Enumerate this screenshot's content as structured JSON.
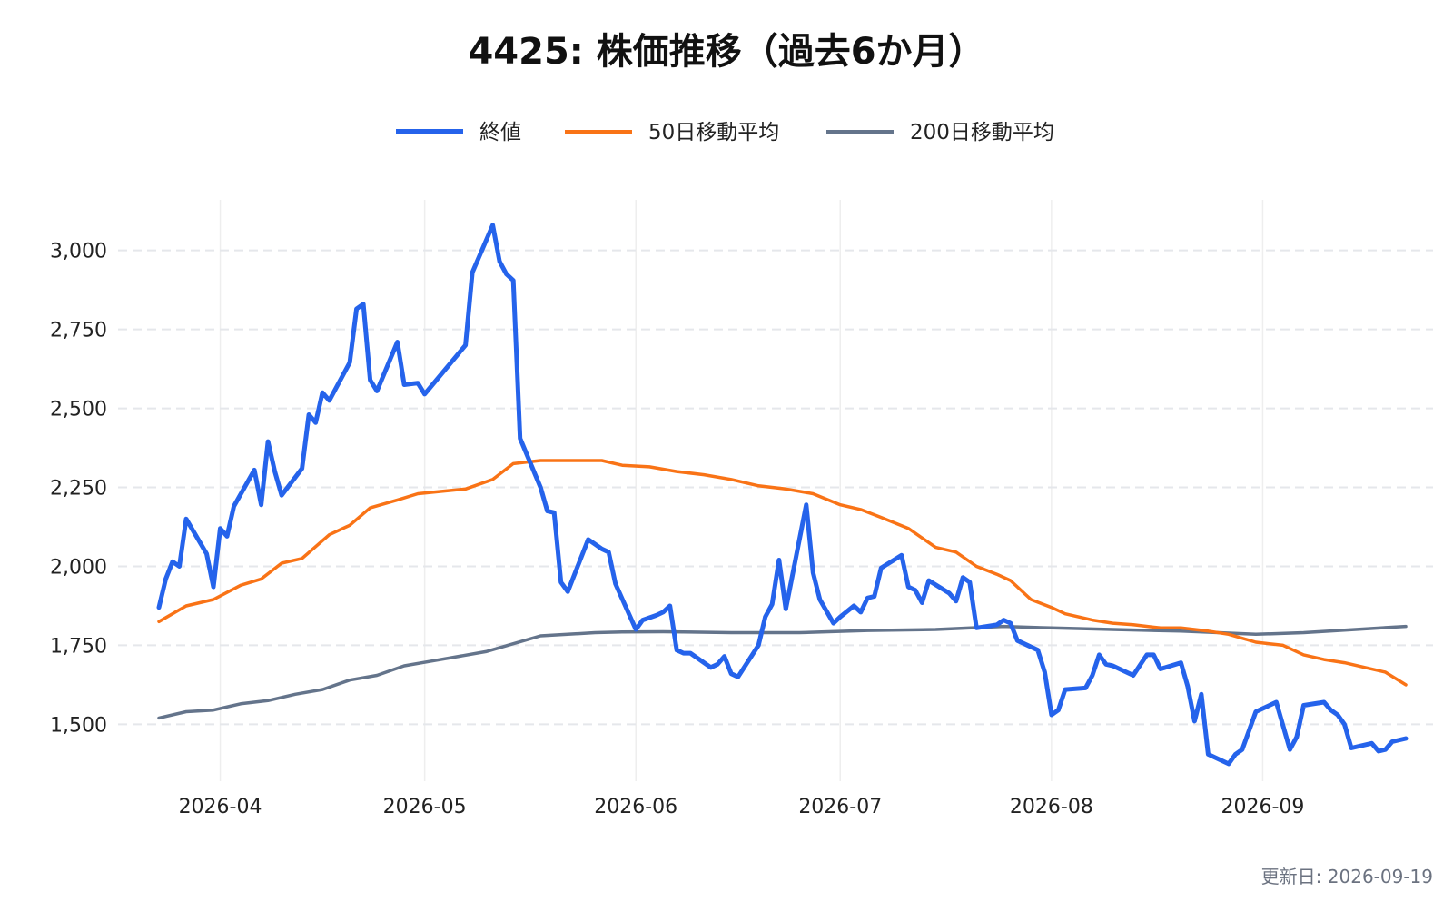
{
  "chart_data": {
    "type": "line",
    "title": "4425: 株価推移（過去6か月）",
    "xlabel": "",
    "ylabel": "",
    "x_ticks": [
      "2026-04",
      "2026-05",
      "2026-06",
      "2026-07",
      "2026-08",
      "2026-09"
    ],
    "y_ticks": [
      "1,500",
      "1,750",
      "2,000",
      "2,250",
      "2,500",
      "2,750",
      "3,000"
    ],
    "y_tick_values": [
      1500,
      1750,
      2000,
      2250,
      2500,
      2750,
      3000
    ],
    "ylim": [
      1320,
      3160
    ],
    "xlim": [
      "2026-03-17",
      "2026-09-26"
    ],
    "grid": true,
    "legend_position": "top-center",
    "series": [
      {
        "name": "終値",
        "color": "#2563eb",
        "points": [
          [
            "2026-03-23",
            1870
          ],
          [
            "2026-03-24",
            1960
          ],
          [
            "2026-03-25",
            2015
          ],
          [
            "2026-03-26",
            2000
          ],
          [
            "2026-03-27",
            2150
          ],
          [
            "2026-03-30",
            2040
          ],
          [
            "2026-03-31",
            1935
          ],
          [
            "2026-04-01",
            2120
          ],
          [
            "2026-04-02",
            2095
          ],
          [
            "2026-04-03",
            2190
          ],
          [
            "2026-04-06",
            2305
          ],
          [
            "2026-04-07",
            2195
          ],
          [
            "2026-04-08",
            2395
          ],
          [
            "2026-04-09",
            2300
          ],
          [
            "2026-04-10",
            2225
          ],
          [
            "2026-04-13",
            2310
          ],
          [
            "2026-04-14",
            2480
          ],
          [
            "2026-04-15",
            2455
          ],
          [
            "2026-04-16",
            2550
          ],
          [
            "2026-04-17",
            2525
          ],
          [
            "2026-04-20",
            2645
          ],
          [
            "2026-04-21",
            2815
          ],
          [
            "2026-04-22",
            2830
          ],
          [
            "2026-04-23",
            2590
          ],
          [
            "2026-04-24",
            2555
          ],
          [
            "2026-04-27",
            2710
          ],
          [
            "2026-04-28",
            2575
          ],
          [
            "2026-04-30",
            2580
          ],
          [
            "2026-05-01",
            2545
          ],
          [
            "2026-05-07",
            2700
          ],
          [
            "2026-05-08",
            2930
          ],
          [
            "2026-05-11",
            3080
          ],
          [
            "2026-05-12",
            2965
          ],
          [
            "2026-05-13",
            2925
          ],
          [
            "2026-05-14",
            2905
          ],
          [
            "2026-05-15",
            2405
          ],
          [
            "2026-05-18",
            2250
          ],
          [
            "2026-05-19",
            2175
          ],
          [
            "2026-05-20",
            2170
          ],
          [
            "2026-05-21",
            1950
          ],
          [
            "2026-05-22",
            1920
          ],
          [
            "2026-05-25",
            2085
          ],
          [
            "2026-05-26",
            2070
          ],
          [
            "2026-05-27",
            2055
          ],
          [
            "2026-05-28",
            2045
          ],
          [
            "2026-05-29",
            1945
          ],
          [
            "2026-06-01",
            1800
          ],
          [
            "2026-06-02",
            1830
          ],
          [
            "2026-06-04",
            1845
          ],
          [
            "2026-06-05",
            1855
          ],
          [
            "2026-06-06",
            1875
          ],
          [
            "2026-06-07",
            1735
          ],
          [
            "2026-06-08",
            1725
          ],
          [
            "2026-06-09",
            1725
          ],
          [
            "2026-06-12",
            1680
          ],
          [
            "2026-06-13",
            1690
          ],
          [
            "2026-06-14",
            1715
          ],
          [
            "2026-06-15",
            1660
          ],
          [
            "2026-06-16",
            1650
          ],
          [
            "2026-06-19",
            1750
          ],
          [
            "2026-06-20",
            1840
          ],
          [
            "2026-06-21",
            1880
          ],
          [
            "2026-06-22",
            2020
          ],
          [
            "2026-06-23",
            1865
          ],
          [
            "2026-06-26",
            2195
          ],
          [
            "2026-06-27",
            1980
          ],
          [
            "2026-06-28",
            1895
          ],
          [
            "2026-06-30",
            1820
          ],
          [
            "2026-07-01",
            1840
          ],
          [
            "2026-07-03",
            1875
          ],
          [
            "2026-07-04",
            1855
          ],
          [
            "2026-07-05",
            1900
          ],
          [
            "2026-07-06",
            1905
          ],
          [
            "2026-07-07",
            1995
          ],
          [
            "2026-07-10",
            2035
          ],
          [
            "2026-07-11",
            1935
          ],
          [
            "2026-07-12",
            1925
          ],
          [
            "2026-07-13",
            1885
          ],
          [
            "2026-07-14",
            1955
          ],
          [
            "2026-07-17",
            1915
          ],
          [
            "2026-07-18",
            1890
          ],
          [
            "2026-07-19",
            1965
          ],
          [
            "2026-07-20",
            1950
          ],
          [
            "2026-07-21",
            1805
          ],
          [
            "2026-07-24",
            1815
          ],
          [
            "2026-07-25",
            1830
          ],
          [
            "2026-07-26",
            1820
          ],
          [
            "2026-07-27",
            1765
          ],
          [
            "2026-07-30",
            1735
          ],
          [
            "2026-07-31",
            1665
          ],
          [
            "2026-08-01",
            1530
          ],
          [
            "2026-08-02",
            1545
          ],
          [
            "2026-08-03",
            1610
          ],
          [
            "2026-08-06",
            1615
          ],
          [
            "2026-08-07",
            1655
          ],
          [
            "2026-08-08",
            1720
          ],
          [
            "2026-08-09",
            1690
          ],
          [
            "2026-08-10",
            1685
          ],
          [
            "2026-08-13",
            1655
          ],
          [
            "2026-08-15",
            1720
          ],
          [
            "2026-08-16",
            1720
          ],
          [
            "2026-08-17",
            1675
          ],
          [
            "2026-08-20",
            1695
          ],
          [
            "2026-08-21",
            1620
          ],
          [
            "2026-08-22",
            1510
          ],
          [
            "2026-08-23",
            1595
          ],
          [
            "2026-08-24",
            1405
          ],
          [
            "2026-08-27",
            1375
          ],
          [
            "2026-08-28",
            1405
          ],
          [
            "2026-08-29",
            1420
          ],
          [
            "2026-08-31",
            1540
          ],
          [
            "2026-09-03",
            1570
          ],
          [
            "2026-09-05",
            1420
          ],
          [
            "2026-09-06",
            1460
          ],
          [
            "2026-09-07",
            1560
          ],
          [
            "2026-09-10",
            1570
          ],
          [
            "2026-09-11",
            1545
          ],
          [
            "2026-09-12",
            1530
          ],
          [
            "2026-09-13",
            1500
          ],
          [
            "2026-09-14",
            1425
          ],
          [
            "2026-09-17",
            1440
          ],
          [
            "2026-09-18",
            1415
          ],
          [
            "2026-09-19",
            1420
          ],
          [
            "2026-09-20",
            1445
          ],
          [
            "2026-09-22",
            1455
          ]
        ]
      },
      {
        "name": "50日移動平均",
        "color": "#f97316",
        "points": [
          [
            "2026-03-23",
            1825
          ],
          [
            "2026-03-27",
            1875
          ],
          [
            "2026-03-31",
            1895
          ],
          [
            "2026-04-04",
            1940
          ],
          [
            "2026-04-07",
            1960
          ],
          [
            "2026-04-10",
            2010
          ],
          [
            "2026-04-13",
            2025
          ],
          [
            "2026-04-17",
            2100
          ],
          [
            "2026-04-20",
            2130
          ],
          [
            "2026-04-23",
            2185
          ],
          [
            "2026-04-27",
            2210
          ],
          [
            "2026-04-30",
            2230
          ],
          [
            "2026-05-07",
            2245
          ],
          [
            "2026-05-11",
            2275
          ],
          [
            "2026-05-14",
            2325
          ],
          [
            "2026-05-18",
            2335
          ],
          [
            "2026-05-22",
            2335
          ],
          [
            "2026-05-27",
            2335
          ],
          [
            "2026-05-30",
            2320
          ],
          [
            "2026-06-03",
            2315
          ],
          [
            "2026-06-07",
            2300
          ],
          [
            "2026-06-11",
            2290
          ],
          [
            "2026-06-15",
            2275
          ],
          [
            "2026-06-19",
            2255
          ],
          [
            "2026-06-23",
            2245
          ],
          [
            "2026-06-27",
            2230
          ],
          [
            "2026-07-01",
            2195
          ],
          [
            "2026-07-04",
            2180
          ],
          [
            "2026-07-07",
            2155
          ],
          [
            "2026-07-11",
            2120
          ],
          [
            "2026-07-15",
            2060
          ],
          [
            "2026-07-18",
            2045
          ],
          [
            "2026-07-21",
            2000
          ],
          [
            "2026-07-24",
            1975
          ],
          [
            "2026-07-26",
            1955
          ],
          [
            "2026-07-29",
            1895
          ],
          [
            "2026-08-01",
            1870
          ],
          [
            "2026-08-03",
            1850
          ],
          [
            "2026-08-07",
            1830
          ],
          [
            "2026-08-10",
            1820
          ],
          [
            "2026-08-13",
            1815
          ],
          [
            "2026-08-17",
            1805
          ],
          [
            "2026-08-20",
            1805
          ],
          [
            "2026-08-24",
            1795
          ],
          [
            "2026-08-27",
            1785
          ],
          [
            "2026-08-31",
            1760
          ],
          [
            "2026-09-04",
            1750
          ],
          [
            "2026-09-07",
            1720
          ],
          [
            "2026-09-10",
            1705
          ],
          [
            "2026-09-13",
            1695
          ],
          [
            "2026-09-16",
            1680
          ],
          [
            "2026-09-19",
            1665
          ],
          [
            "2026-09-22",
            1625
          ]
        ]
      },
      {
        "name": "200日移動平均",
        "color": "#64748b",
        "points": [
          [
            "2026-03-23",
            1520
          ],
          [
            "2026-03-27",
            1540
          ],
          [
            "2026-03-31",
            1545
          ],
          [
            "2026-04-04",
            1565
          ],
          [
            "2026-04-08",
            1575
          ],
          [
            "2026-04-12",
            1595
          ],
          [
            "2026-04-16",
            1610
          ],
          [
            "2026-04-20",
            1640
          ],
          [
            "2026-04-24",
            1655
          ],
          [
            "2026-04-28",
            1685
          ],
          [
            "2026-05-02",
            1700
          ],
          [
            "2026-05-06",
            1715
          ],
          [
            "2026-05-10",
            1730
          ],
          [
            "2026-05-14",
            1755
          ],
          [
            "2026-05-18",
            1780
          ],
          [
            "2026-05-22",
            1785
          ],
          [
            "2026-05-26",
            1790
          ],
          [
            "2026-05-30",
            1792
          ],
          [
            "2026-06-05",
            1793
          ],
          [
            "2026-06-15",
            1790
          ],
          [
            "2026-06-25",
            1790
          ],
          [
            "2026-07-05",
            1797
          ],
          [
            "2026-07-15",
            1800
          ],
          [
            "2026-07-25",
            1810
          ],
          [
            "2026-08-01",
            1805
          ],
          [
            "2026-08-10",
            1800
          ],
          [
            "2026-08-20",
            1795
          ],
          [
            "2026-08-31",
            1785
          ],
          [
            "2026-09-07",
            1790
          ],
          [
            "2026-09-13",
            1798
          ],
          [
            "2026-09-22",
            1810
          ]
        ]
      }
    ]
  },
  "footer": {
    "updated": "更新日: 2026-09-19"
  }
}
